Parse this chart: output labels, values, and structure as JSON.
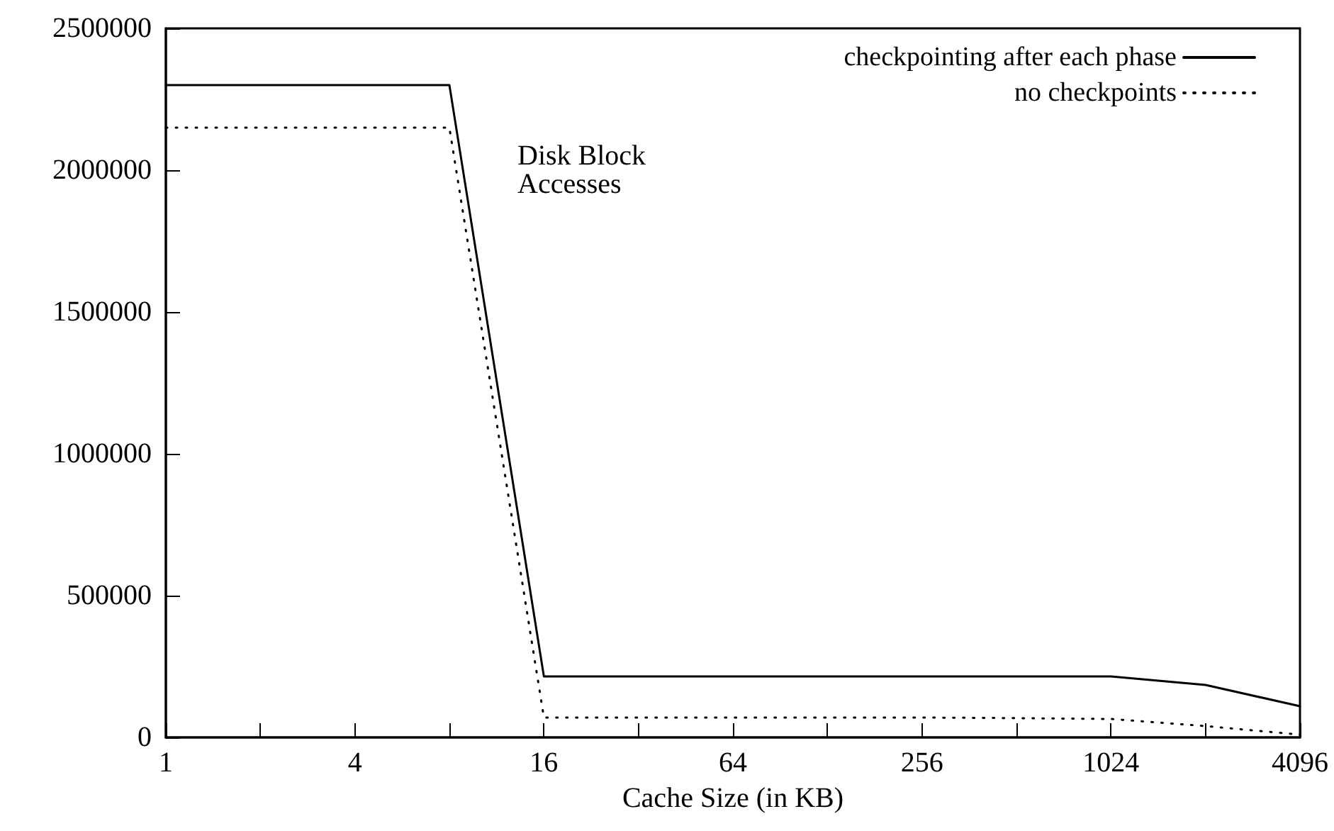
{
  "chart_data": {
    "type": "line",
    "xlabel": "Cache Size (in KB)",
    "annotations": [
      "Disk Block Accesses"
    ],
    "log": "x",
    "xlim": [
      1,
      4096
    ],
    "xticks": [
      1,
      {
        "value": 2,
        "label": null
      },
      4,
      {
        "value": 8,
        "label": null
      },
      16,
      {
        "value": 32,
        "label": null
      },
      64,
      {
        "value": 128,
        "label": null
      },
      256,
      {
        "value": 512,
        "label": null
      },
      1024,
      {
        "value": 2048,
        "label": null
      },
      4096
    ],
    "ylim": [
      0,
      2500000
    ],
    "yticks": [
      0,
      500000,
      1000000,
      1500000,
      2000000,
      2500000
    ],
    "x": [
      1,
      8,
      16,
      32,
      64,
      128,
      256,
      512,
      1024,
      2048,
      4096
    ],
    "series": [
      {
        "name": "checkpointing after each phase",
        "color": "#000000",
        "line_style": "solid",
        "values": [
          2300000,
          2300000,
          215000,
          215000,
          215000,
          215000,
          215000,
          215000,
          215000,
          185000,
          110000
        ]
      },
      {
        "name": "no checkpoints",
        "color": "#000000",
        "line_style": "dotted",
        "values": [
          2150000,
          2150000,
          70000,
          70000,
          70000,
          70000,
          70000,
          68000,
          65000,
          40000,
          10000
        ]
      }
    ],
    "marker": "none",
    "grid": false,
    "legend": "top right"
  }
}
